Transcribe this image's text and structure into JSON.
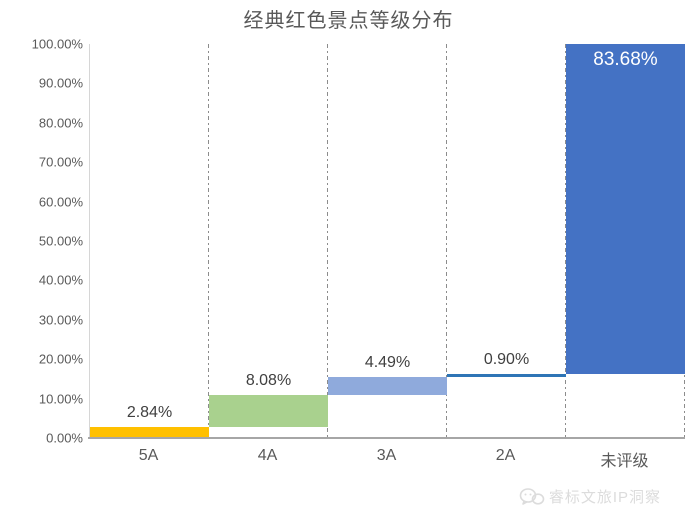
{
  "title": "经典红色景点等级分布",
  "chart_data": {
    "type": "bar",
    "subtype": "waterfall",
    "title": "经典红色景点等级分布",
    "categories": [
      "5A",
      "4A",
      "3A",
      "2A",
      "未评级"
    ],
    "values": [
      2.84,
      8.08,
      4.49,
      0.9,
      83.68
    ],
    "starts": [
      0,
      2.84,
      10.92,
      15.41,
      16.31
    ],
    "data_labels": [
      "2.84%",
      "8.08%",
      "4.49%",
      "0.90%",
      "83.68%"
    ],
    "label_placement": [
      "above",
      "above",
      "above",
      "above",
      "inside-top"
    ],
    "bar_colors": [
      "#FFC000",
      "#A9D18E",
      "#8FAADC",
      "#2E75B6",
      "#4472C4"
    ],
    "xlabel": "",
    "ylabel": "",
    "ylim": [
      0,
      100
    ],
    "ytick_labels": [
      "0.00%",
      "10.00%",
      "20.00%",
      "30.00%",
      "40.00%",
      "50.00%",
      "60.00%",
      "70.00%",
      "80.00%",
      "90.00%",
      "100.00%"
    ],
    "grid": "vertical dash-dot category separators",
    "legend": "none"
  },
  "watermark": {
    "text": "睿标文旅IP洞察",
    "icon": "wechat-logo-icon"
  },
  "ui_colors": {
    "title_text": "#595959",
    "axis_text": "#595959",
    "data_label_text": "#404040",
    "inside_label_text": "#ffffff",
    "axis_line": "#a6a6a6",
    "separator_line": "#8c8c8c",
    "watermark_text": "#dcdcdc"
  }
}
